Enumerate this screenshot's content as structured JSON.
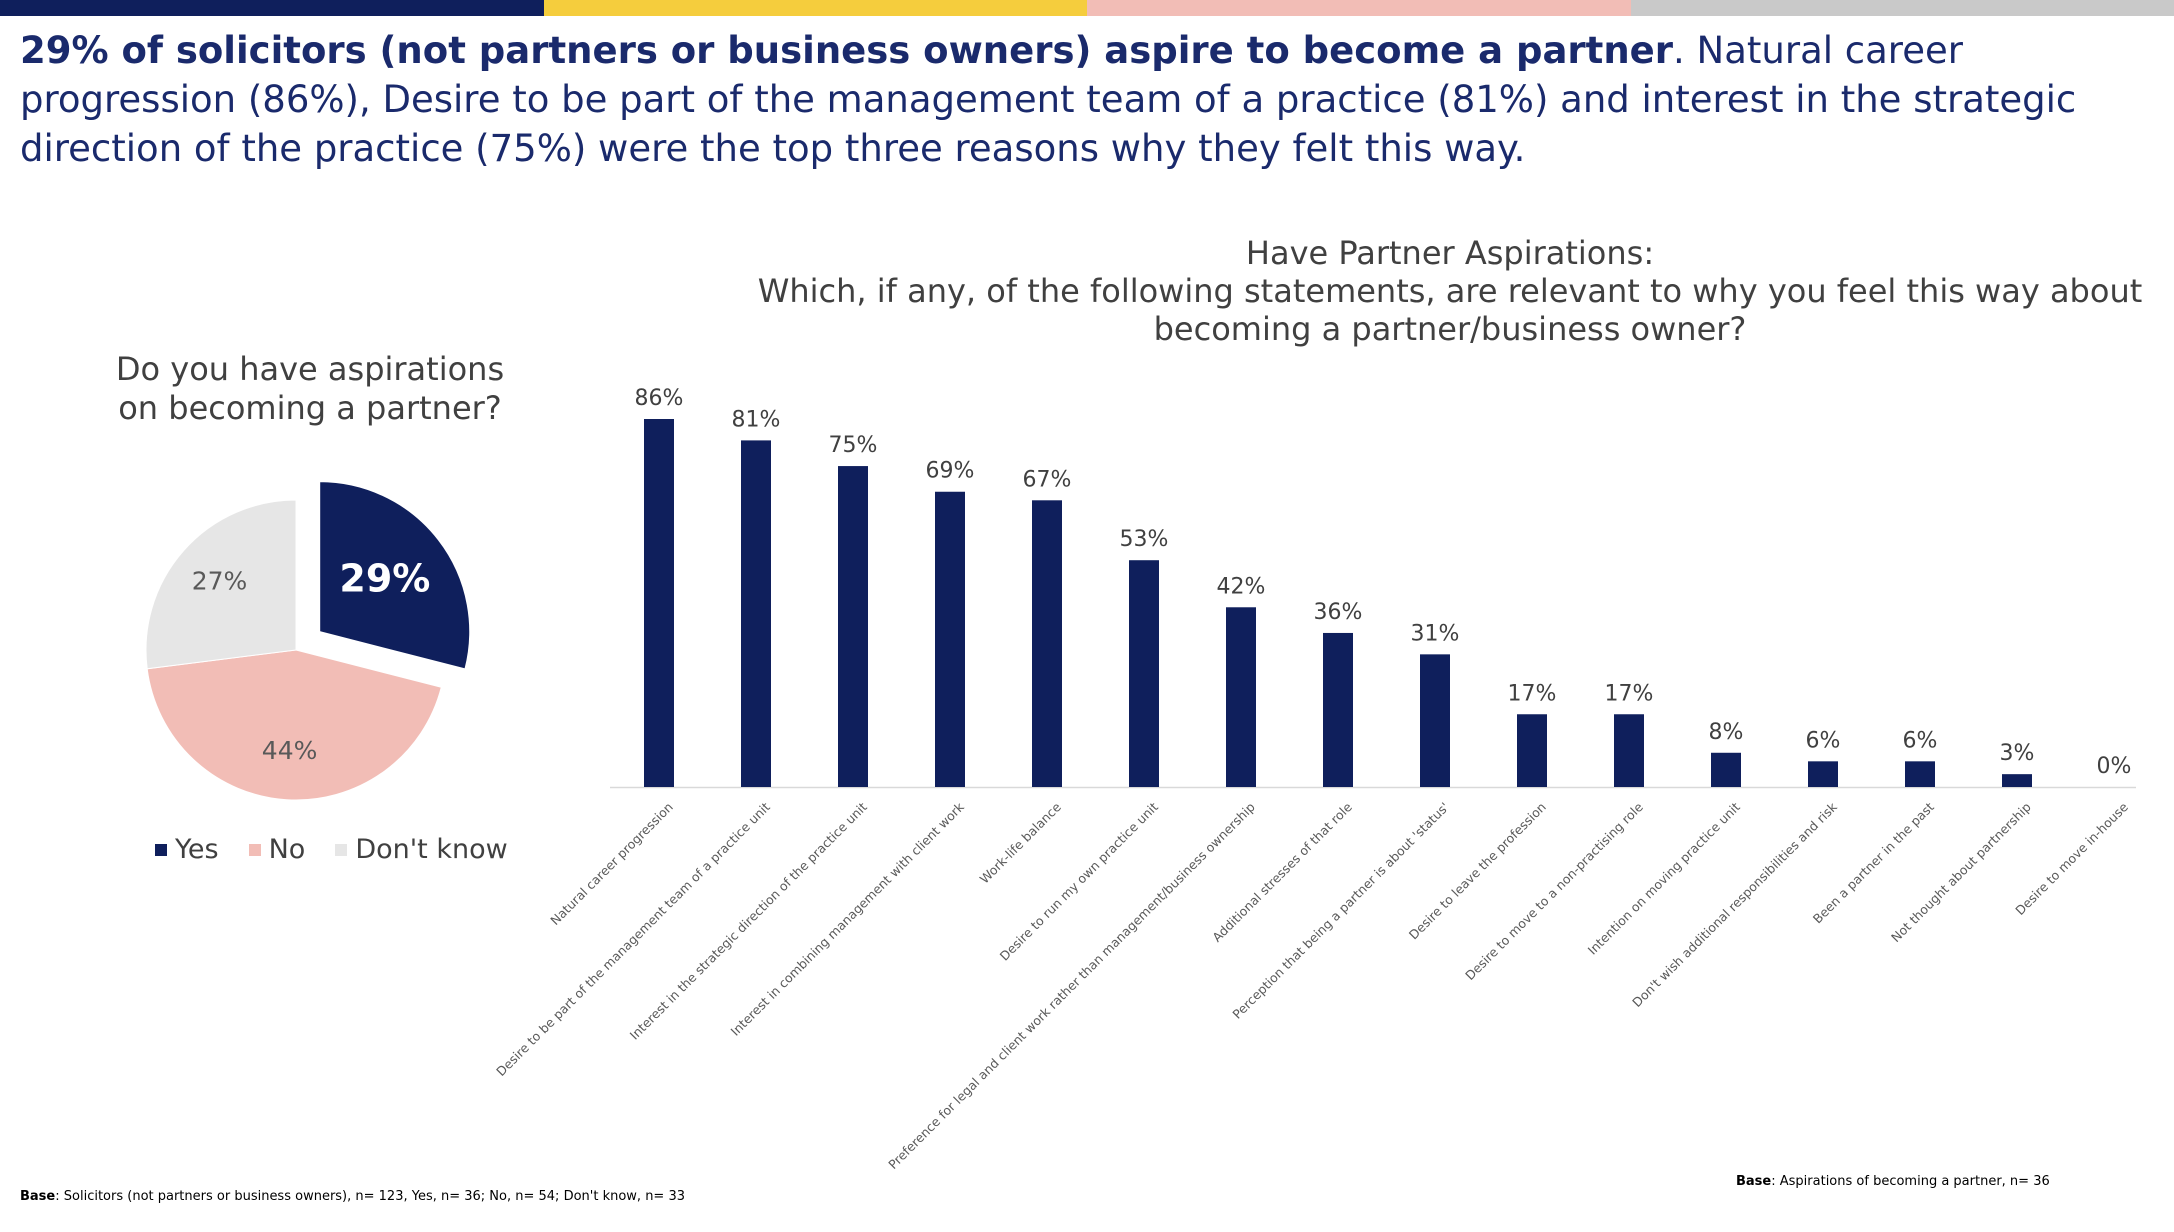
{
  "colors": {
    "navy": "#0f1f5c",
    "pink": "#f2bdb6",
    "grey": "#e6e6e6",
    "accent_yellow": "#f5cd3d",
    "accent_pink": "#f2bdb6",
    "accent_grey": "#c9c9c9",
    "headline_text": "#1a2a6c"
  },
  "headline": {
    "bold": "29% of solicitors (not partners or business owners) aspire to become a partner",
    "rest": ". Natural career progression (86%), Desire to be part of the management team of a practice (81%) and interest in the strategic direction of the practice (75%) were the top three reasons why they felt this way."
  },
  "chart_data": [
    {
      "type": "pie",
      "title_line1": "Do you have aspirations",
      "title_line2": "on becoming a partner?",
      "slices": [
        {
          "name": "Yes",
          "value": 29,
          "label": "29%",
          "color": "#0f1f5c",
          "exploded": true
        },
        {
          "name": "No",
          "value": 44,
          "label": "44%",
          "color": "#f2bdb6",
          "exploded": false
        },
        {
          "name": "Don't know",
          "value": 27,
          "label": "27%",
          "color": "#e6e6e6",
          "exploded": false
        }
      ],
      "legend": [
        "Yes",
        "No",
        "Don't know"
      ],
      "legend_position": "bottom"
    },
    {
      "type": "bar",
      "title_line1": "Have Partner Aspirations:",
      "title_line2": "Which, if any, of the following statements, are relevant to why you feel this way about",
      "title_line3": "becoming a partner/business owner?",
      "ylim": [
        0,
        100
      ],
      "grid": false,
      "categories": [
        "Natural career progression",
        "Desire to be part of the management team of a practice unit",
        "Interest in the strategic direction of the practice unit",
        "Interest in combining management with client work",
        "Work-life balance",
        "Desire to run my own practice unit",
        "Preference for legal and client work rather than management/business ownership",
        "Additional stresses of that role",
        "Perception that being a partner is about 'status'",
        "Desire to leave the profession",
        "Desire to move to a non-practising role",
        "Intention on moving practice unit",
        "Don't wish additional responsibilities and risk",
        "Been a partner in the past",
        "Not thought about partnership",
        "Desire to move in-house"
      ],
      "values": [
        86,
        81,
        75,
        69,
        67,
        53,
        42,
        36,
        31,
        17,
        17,
        8,
        6,
        6,
        3,
        0
      ],
      "labels": [
        "86%",
        "81%",
        "75%",
        "69%",
        "67%",
        "53%",
        "42%",
        "36%",
        "31%",
        "17%",
        "17%",
        "8%",
        "6%",
        "6%",
        "3%",
        "0%"
      ]
    }
  ],
  "base_left": {
    "label": "Base",
    "text": ": Solicitors (not partners or business owners), n= 123, Yes, n= 36; No, n= 54; Don't know, n= 33"
  },
  "base_right": {
    "label": "Base",
    "text": ": Aspirations of becoming a partner, n= 36"
  }
}
